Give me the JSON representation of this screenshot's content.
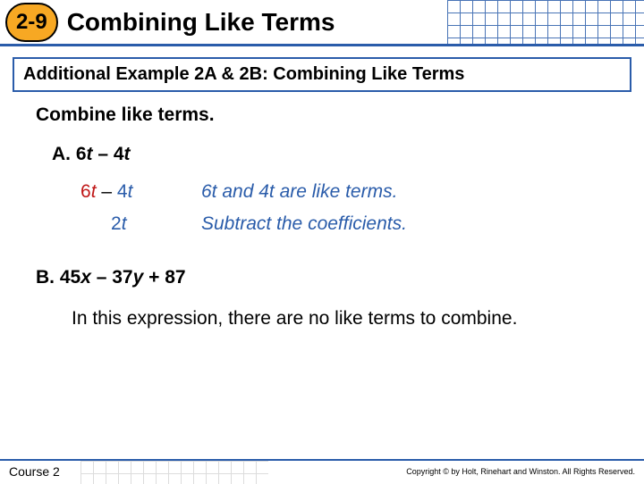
{
  "header": {
    "lesson_number": "2-9",
    "title": "Combining Like Terms",
    "accent_color": "#2a5caa",
    "badge_bg": "#f7a823"
  },
  "subtitle": "Additional Example 2A & 2B: Combining Like Terms",
  "instruction": "Combine like terms.",
  "partA": {
    "label": "A. 6",
    "var1": "t",
    "mid": " – 4",
    "var2": "t",
    "work_c1": "6",
    "work_v1": "t",
    "work_op": " – ",
    "work_c2": "4",
    "work_v2": "t",
    "note1": "6t and 4t are like terms.",
    "result_num": "2",
    "result_var": "t",
    "note2": "Subtract the coefficients."
  },
  "partB": {
    "label_pre": "B. 45",
    "v1": "x",
    "mid1": " – 37",
    "v2": "y",
    "mid2": " + 87",
    "explain": "In this expression, there are no like terms to combine."
  },
  "footer": {
    "course": "Course 2",
    "copyright": "Copyright © by Holt, Rinehart and Winston. All Rights Reserved."
  },
  "colors": {
    "red": "#c01818",
    "blue": "#2a5caa",
    "grid_light": "#d4d4d4"
  }
}
